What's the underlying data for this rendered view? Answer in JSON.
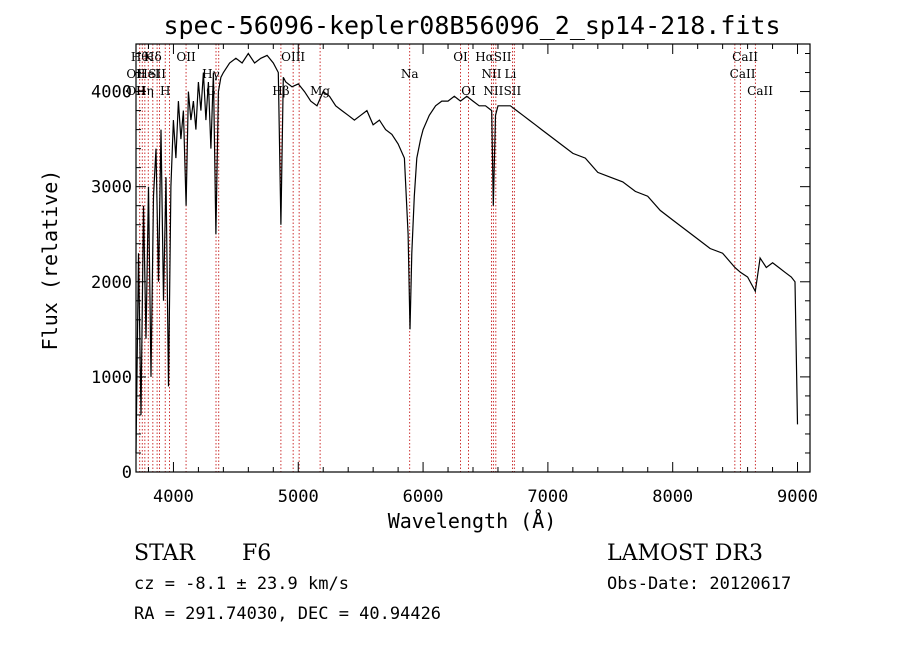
{
  "chart_data": {
    "type": "line",
    "title": "spec-56096-kepler08B56096_2_sp14-218.fits",
    "xlabel": "Wavelength (Å)",
    "ylabel": "Flux (relative)",
    "xlim": [
      3700,
      9100
    ],
    "ylim": [
      0,
      4500
    ],
    "xticks": [
      4000,
      5000,
      6000,
      7000,
      8000,
      9000
    ],
    "yticks": [
      0,
      1000,
      2000,
      3000,
      4000
    ],
    "series": [
      {
        "name": "flux",
        "x": [
          3700,
          3720,
          3740,
          3760,
          3780,
          3800,
          3820,
          3840,
          3860,
          3880,
          3900,
          3920,
          3940,
          3960,
          3980,
          4000,
          4020,
          4040,
          4060,
          4080,
          4101,
          4120,
          4140,
          4160,
          4180,
          4200,
          4220,
          4240,
          4260,
          4280,
          4300,
          4320,
          4340,
          4360,
          4380,
          4400,
          4450,
          4500,
          4550,
          4600,
          4650,
          4700,
          4750,
          4800,
          4840,
          4861,
          4880,
          4900,
          4950,
          5000,
          5050,
          5100,
          5150,
          5200,
          5250,
          5300,
          5350,
          5400,
          5450,
          5500,
          5550,
          5600,
          5650,
          5700,
          5750,
          5800,
          5850,
          5880,
          5895,
          5910,
          5930,
          5950,
          5980,
          6000,
          6050,
          6100,
          6150,
          6200,
          6250,
          6300,
          6350,
          6400,
          6450,
          6500,
          6550,
          6563,
          6580,
          6600,
          6650,
          6700,
          6750,
          6800,
          6850,
          6900,
          6950,
          7000,
          7100,
          7200,
          7300,
          7400,
          7500,
          7600,
          7700,
          7800,
          7900,
          8000,
          8100,
          8200,
          8300,
          8400,
          8498,
          8542,
          8600,
          8662,
          8700,
          8750,
          8800,
          8850,
          8900,
          8950,
          8980,
          9000
        ],
        "y": [
          200,
          2300,
          600,
          2800,
          1400,
          3000,
          1000,
          2900,
          3400,
          2000,
          3600,
          1800,
          3100,
          900,
          3000,
          3700,
          3300,
          3900,
          3500,
          3800,
          2800,
          4000,
          3700,
          3900,
          3600,
          4100,
          3800,
          4200,
          3700,
          4100,
          3400,
          4200,
          2500,
          4000,
          4150,
          4200,
          4300,
          4350,
          4300,
          4400,
          4300,
          4350,
          4380,
          4300,
          4200,
          2600,
          4150,
          4100,
          4050,
          4080,
          4000,
          3900,
          3850,
          4000,
          3950,
          3850,
          3800,
          3750,
          3700,
          3750,
          3800,
          3650,
          3700,
          3600,
          3550,
          3450,
          3300,
          2500,
          1500,
          2300,
          2900,
          3300,
          3500,
          3600,
          3750,
          3850,
          3900,
          3900,
          3950,
          3900,
          3950,
          3900,
          3850,
          3850,
          3800,
          2800,
          3750,
          3850,
          3850,
          3850,
          3800,
          3750,
          3700,
          3650,
          3600,
          3550,
          3450,
          3350,
          3300,
          3150,
          3100,
          3050,
          2950,
          2900,
          2750,
          2650,
          2550,
          2450,
          2350,
          2300,
          2150,
          2100,
          2050,
          1900,
          2250,
          2150,
          2200,
          2150,
          2100,
          2050,
          2000,
          500
        ]
      }
    ],
    "line_markers": {
      "x": [
        3730,
        3750,
        3771,
        3798,
        3835,
        3869,
        3889,
        3934,
        3969,
        4101,
        4341,
        4363,
        4861,
        4959,
        5007,
        5175,
        5893,
        6300,
        6364,
        6548,
        6563,
        6583,
        6716,
        6731,
        8498,
        8542,
        8662
      ],
      "top_labels": [
        "Hθ",
        "K",
        "Hδ",
        "OII",
        "OIII",
        "OI",
        "HαSII",
        "CaII"
      ],
      "mid_labels": [
        "OII",
        "HeI",
        "SII",
        "Hγ",
        "Na",
        "NII",
        "Li",
        "CaII"
      ],
      "low_labels": [
        "OII",
        "Hη",
        "H",
        "G",
        "Hβ",
        "Mg",
        "OI",
        "NII",
        "SII",
        "CaII"
      ]
    }
  },
  "info": {
    "object_class": "STAR",
    "subclass": "F6",
    "survey": "LAMOST DR3",
    "cz": "cz = -8.1 ± 23.9 km/s",
    "obs_date": "Obs-Date: 20120617",
    "coords": "RA = 291.74030, DEC =  40.94426"
  }
}
